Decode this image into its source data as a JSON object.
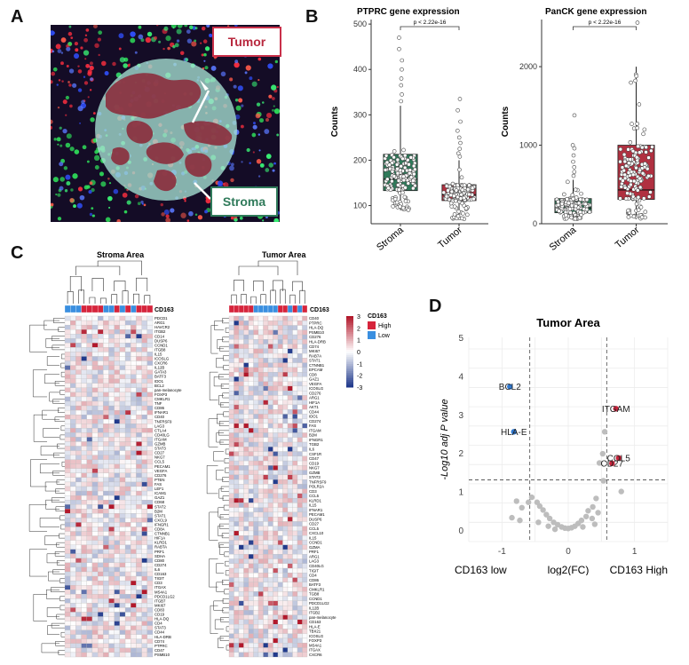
{
  "panels": {
    "a": "A",
    "b": "B",
    "c": "C",
    "d": "D"
  },
  "panel_a": {
    "tumor_label": "Tumor",
    "stroma_label": "Stroma",
    "colors": {
      "tumor": "#8b2a3a",
      "stroma": "#2f7a5a",
      "circle": "#9fd7cc"
    }
  },
  "chart_data": [
    {
      "type": "box",
      "id": "ptprc",
      "title": "PTPRC gene expression",
      "ylabel": "Counts",
      "categories": [
        "Stroma",
        "Tumor"
      ],
      "ylim": [
        60,
        510
      ],
      "yticks": [
        100,
        200,
        300,
        400,
        500
      ],
      "pvalue": "p < 2.22e-16",
      "boxes": [
        {
          "name": "Stroma",
          "q1": 133,
          "median": 158,
          "q3": 213,
          "whisker_low": 90,
          "whisker_high": 320,
          "color": "#2f7a5a"
        },
        {
          "name": "Tumor",
          "q1": 111,
          "median": 124,
          "q3": 146,
          "whisker_low": 70,
          "whisker_high": 200,
          "color": "#b03040"
        }
      ],
      "outliers": [
        {
          "group": "Stroma",
          "values": [
            470,
            445,
            420,
            400,
            380,
            365,
            345,
            330
          ]
        },
        {
          "group": "Tumor",
          "values": [
            335,
            310,
            285,
            265,
            250,
            238,
            225,
            215,
            208
          ]
        }
      ]
    },
    {
      "type": "box",
      "id": "panck",
      "title": "PanCK gene expression",
      "ylabel": "Counts",
      "categories": [
        "Stroma",
        "Tumor"
      ],
      "ylim": [
        0,
        2600
      ],
      "yticks": [
        0,
        1000,
        2000
      ],
      "pvalue": "p < 2.22e-16",
      "boxes": [
        {
          "name": "Stroma",
          "q1": 140,
          "median": 200,
          "q3": 320,
          "whisker_low": 60,
          "whisker_high": 560,
          "color": "#2f7a5a"
        },
        {
          "name": "Tumor",
          "q1": 310,
          "median": 430,
          "q3": 1000,
          "whisker_low": 60,
          "whisker_high": 2000,
          "color": "#b03040"
        }
      ],
      "outliers": [
        {
          "group": "Stroma",
          "values": [
            1380,
            1000,
            960,
            870,
            790,
            720,
            660,
            610
          ]
        },
        {
          "group": "Tumor",
          "values": [
            2560,
            1900,
            1880
          ]
        }
      ]
    },
    {
      "type": "heatmap",
      "id": "stroma_heat",
      "title": "Stroma Area",
      "annotation_label": "CD163",
      "columns": 16,
      "annotation": [
        "Low",
        "Low",
        "Low",
        "High",
        "High",
        "High",
        "High",
        "Low",
        "Low",
        "High",
        "Low",
        "High",
        "Low",
        "High",
        "High",
        "High"
      ],
      "genes": [
        "PDCD1",
        "ARG1",
        "HAVCR2",
        "ITGB2",
        "CD14",
        "DUSP6",
        "CCND1",
        "ITGB8",
        "IL15",
        "ICOSLG",
        "CXCR6",
        "IL12B",
        "GATA3",
        "BATF3",
        "IDO1",
        "BCL2",
        "pan-melanocyte",
        "FOXP3",
        "CMKLR1",
        "TNF",
        "CD86",
        "IFNAR1",
        "CD40",
        "TNFRSF9",
        "LAG3",
        "CTLA4",
        "CD40LG",
        "ITGAM",
        "GZMB",
        "STAT3",
        "CD27",
        "NKG7",
        "CCL5",
        "PECAM1",
        "VEGFA",
        "CD276",
        "PTEN",
        "FAS",
        "LEF1",
        "ICAM1",
        "GAZ1",
        "CD68",
        "STAT2",
        "B2M",
        "STAT1",
        "CXCL9",
        "IFNGR1",
        "CD8A",
        "CTNNB1",
        "HIF1A",
        "KLRD1",
        "RABTA",
        "PRF1",
        "SDHA",
        "CD80",
        "CD274",
        "IL6",
        "CD163",
        "TIGIT",
        "CD3",
        "ITGAX",
        "MS4A1",
        "PDCD1LG2",
        "ITGB7",
        "MKI67",
        "CD83",
        "CD19",
        "HLA-DQ",
        "CD4",
        "STAT3",
        "CD44",
        "HLA-DRB",
        "CD74",
        "PTPRC",
        "CD47",
        "PSMB10"
      ],
      "legend": {
        "title": "CD163",
        "high": "High",
        "low": "Low",
        "high_color": "#d6243c",
        "low_color": "#3a8fe0",
        "ticks": [
          3,
          2,
          1,
          0,
          -1,
          -2,
          -3
        ]
      }
    },
    {
      "type": "heatmap",
      "id": "tumor_heat",
      "title": "Tumor Area",
      "annotation_label": "CD163",
      "columns": 16,
      "annotation": [
        "High",
        "High",
        "High",
        "High",
        "High",
        "Low",
        "Low",
        "Low",
        "Low",
        "Low",
        "High",
        "High",
        "Low",
        "High",
        "Low",
        "High"
      ],
      "genes": [
        "CD40",
        "PTPRC",
        "HLA-DQ",
        "PSMB10",
        "CD276",
        "HLA-DRB",
        "CD74",
        "MKI67",
        "RAB7A",
        "STAT1",
        "CTNNB1",
        "EPCAM",
        "CD8",
        "GAZ1",
        "VEGFA",
        "ICOSLG",
        "CD276",
        "ARG1",
        "HIF1A",
        "AKT1",
        "CD44",
        "IDO1",
        "CD274",
        "FAS",
        "ITGAM",
        "B2M",
        "IFNGR1",
        "TGB2",
        "IL6",
        "CSF1R",
        "CD47",
        "CD19",
        "NKG7",
        "GZMB",
        "STAT3",
        "TNFRSF9",
        "POLR2A",
        "CD3",
        "CCL5",
        "KLRD1",
        "IL15",
        "IFNAR1",
        "PECAM1",
        "DUSP6",
        "CD27",
        "CCL5",
        "CXCL10",
        "IL15",
        "CCND1",
        "GZMA",
        "PRF1",
        "ARG1",
        "LAG3",
        "CD40LG",
        "TIGIT",
        "CD4",
        "CD86",
        "BATF3",
        "CMKLR1",
        "TGB8",
        "CCND1",
        "PDCD1LG2",
        "IL12B",
        "ITGB2",
        "pan-melanocyte",
        "CD163",
        "HLA-E",
        "TBX21",
        "ICOSLG",
        "FOXP3",
        "MS4A1",
        "ITGAX",
        "CXCR6"
      ]
    },
    {
      "type": "scatter",
      "id": "volcano",
      "title": "Tumor Area",
      "xlabel": "log2(FC)",
      "ylabel": "-Log10 adj P value",
      "xlabel_left": "CD163 low",
      "xlabel_right": "CD163 High",
      "xlim": [
        -1.5,
        1.5
      ],
      "ylim": [
        -0.3,
        5
      ],
      "xticks": [
        -1,
        0,
        1
      ],
      "yticks": [
        0,
        1,
        2,
        3,
        4,
        5
      ],
      "threshold_y": 1.3,
      "threshold_x": [
        -0.58,
        0.58
      ],
      "labeled_points": [
        {
          "label": "BCL2",
          "x": -0.88,
          "y": 3.72,
          "color": "#2f78d0"
        },
        {
          "label": "HLA-E",
          "x": -0.82,
          "y": 2.55,
          "color": "#2f78d0"
        },
        {
          "label": "ITGAM",
          "x": 0.72,
          "y": 3.15,
          "color": "#c8243c"
        },
        {
          "label": "COL5",
          "x": 0.76,
          "y": 1.87,
          "color": "#c8243c"
        },
        {
          "label": "CD27",
          "x": 0.66,
          "y": 1.73,
          "color": "#c8243c"
        }
      ],
      "grey_points": [
        {
          "x": 0.55,
          "y": 2.55
        },
        {
          "x": 0.52,
          "y": 1.98
        },
        {
          "x": 0.53,
          "y": 1.28
        },
        {
          "x": 0.47,
          "y": 1.74
        },
        {
          "x": 0.8,
          "y": 1.0
        },
        {
          "x": 0.42,
          "y": 0.82
        },
        {
          "x": 0.37,
          "y": 0.6
        },
        {
          "x": 0.3,
          "y": 0.5
        },
        {
          "x": 0.27,
          "y": 0.35
        },
        {
          "x": 0.2,
          "y": 0.25
        },
        {
          "x": 0.15,
          "y": 0.17
        },
        {
          "x": 0.1,
          "y": 0.1
        },
        {
          "x": 0.05,
          "y": 0.06
        },
        {
          "x": 0.0,
          "y": 0.04
        },
        {
          "x": -0.05,
          "y": 0.05
        },
        {
          "x": -0.1,
          "y": 0.08
        },
        {
          "x": -0.16,
          "y": 0.14
        },
        {
          "x": -0.22,
          "y": 0.2
        },
        {
          "x": -0.28,
          "y": 0.3
        },
        {
          "x": -0.33,
          "y": 0.4
        },
        {
          "x": -0.38,
          "y": 0.52
        },
        {
          "x": -0.43,
          "y": 0.62
        },
        {
          "x": -0.47,
          "y": 0.72
        },
        {
          "x": -0.55,
          "y": 0.85
        },
        {
          "x": -0.6,
          "y": 0.72
        },
        {
          "x": -0.7,
          "y": 0.58
        },
        {
          "x": -0.78,
          "y": 0.75
        },
        {
          "x": -0.85,
          "y": 0.32
        },
        {
          "x": -0.73,
          "y": 0.25
        },
        {
          "x": -0.45,
          "y": 0.2
        },
        {
          "x": 0.36,
          "y": 0.3
        },
        {
          "x": 0.45,
          "y": 0.45
        },
        {
          "x": 0.4,
          "y": 0.15
        },
        {
          "x": -0.3,
          "y": 0.1
        },
        {
          "x": 0.22,
          "y": 0.08
        },
        {
          "x": -0.2,
          "y": 0.02
        }
      ]
    }
  ]
}
